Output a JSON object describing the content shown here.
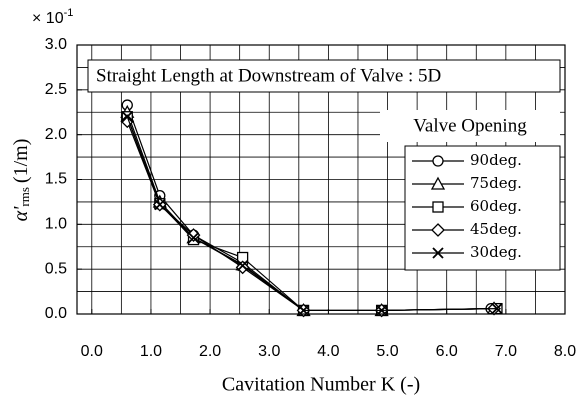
{
  "chart_data": {
    "type": "line",
    "title": "Straight Length at Downstream of Valve : 5D",
    "scale_label": {
      "base": "× 10",
      "exponent": "-1"
    },
    "x_label": "Cavitation Number K (-)",
    "y_label": {
      "symbol": "α'",
      "subscript": "rms",
      "unit": "(1/m)"
    },
    "legend_title": "Valve Opening",
    "legend": "right",
    "grid": true,
    "xlim": [
      -0.25,
      8
    ],
    "ylim": [
      0,
      3
    ],
    "xticks": [
      {
        "value": 0,
        "label": "0.0"
      },
      {
        "value": 1,
        "label": "1.0"
      },
      {
        "value": 2,
        "label": "2.0"
      },
      {
        "value": 3,
        "label": "3.0"
      },
      {
        "value": 4,
        "label": "4.0"
      },
      {
        "value": 5,
        "label": "5.0"
      },
      {
        "value": 6,
        "label": "6.0"
      },
      {
        "value": 7,
        "label": "7.0"
      },
      {
        "value": 8,
        "label": "8.0"
      }
    ],
    "yticks": [
      {
        "value": 0,
        "label": "0.0"
      },
      0.5,
      {
        "value": 1,
        "label": "1.0"
      },
      1.5,
      {
        "value": 2,
        "label": "2.0"
      },
      2.5,
      {
        "value": 3,
        "label": "3.0"
      }
    ],
    "xgrid": [
      0,
      0.5,
      1,
      1.5,
      2,
      2.5,
      3,
      3.5,
      4,
      4.5,
      5,
      5.5,
      6,
      6.5,
      7,
      7.5
    ],
    "ygrid": [
      0.25,
      0.5,
      0.75,
      1,
      1.25,
      1.5,
      1.75,
      2,
      2.25,
      2.5,
      2.75
    ],
    "series": [
      {
        "name": "90deg.",
        "marker": "circle",
        "color": "#000000",
        "x": [
          0.6,
          1.15,
          1.72,
          2.55,
          3.58,
          4.9,
          6.75
        ],
        "values": [
          2.33,
          1.32,
          0.88,
          0.57,
          0.04,
          0.04,
          0.06
        ]
      },
      {
        "name": "75deg.",
        "marker": "triangle",
        "color": "#000000",
        "x": [
          0.6,
          1.15,
          1.72,
          2.55,
          3.58,
          4.9,
          6.8
        ],
        "values": [
          2.25,
          1.25,
          0.85,
          0.55,
          0.04,
          0.04,
          0.06
        ]
      },
      {
        "name": "60deg.",
        "marker": "square",
        "color": "#000000",
        "x": [
          0.6,
          1.15,
          1.72,
          2.55,
          3.58,
          4.9,
          6.85
        ],
        "values": [
          2.2,
          1.23,
          0.83,
          0.63,
          0.04,
          0.04,
          0.06
        ]
      },
      {
        "name": "45deg.",
        "marker": "diamond",
        "color": "#000000",
        "x": [
          0.6,
          1.15,
          1.72,
          2.55,
          3.58,
          4.9,
          6.8
        ],
        "values": [
          2.15,
          1.22,
          0.88,
          0.52,
          0.04,
          0.04,
          0.06
        ]
      },
      {
        "name": "30deg.",
        "marker": "x",
        "color": "#000000",
        "x": [
          0.6,
          1.15,
          1.72,
          2.55,
          3.58,
          4.9,
          6.85
        ],
        "values": [
          2.2,
          1.22,
          0.85,
          0.54,
          0.04,
          0.04,
          0.06
        ]
      }
    ]
  }
}
